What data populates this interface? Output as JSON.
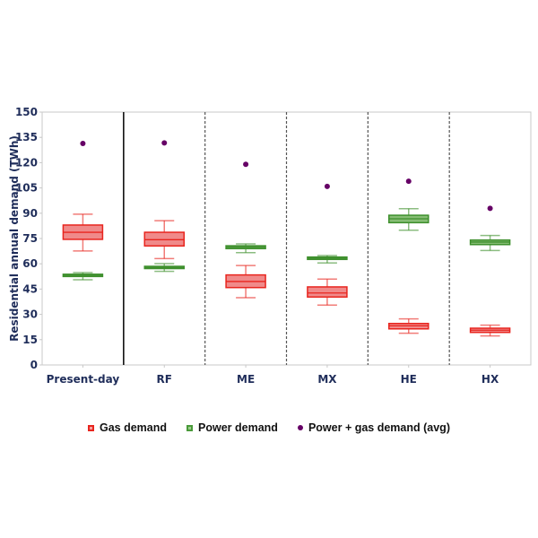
{
  "chart_data": {
    "type": "box",
    "title": "",
    "xlabel": "",
    "ylabel": "Residential annual demand (TWh)",
    "ylim": [
      0,
      150
    ],
    "yticks": [
      0,
      15,
      30,
      45,
      60,
      75,
      90,
      105,
      120,
      135,
      150
    ],
    "categories": [
      "Present-day",
      "RF",
      "ME",
      "MX",
      "HE",
      "HX"
    ],
    "dividers": [
      "solid",
      "dashed",
      "dashed",
      "dashed",
      "dashed"
    ],
    "series": [
      {
        "name": "Gas demand",
        "kind": "box",
        "color": "#e8251e",
        "fill": "#f08a8a",
        "values": [
          {
            "min": 67.6,
            "q1": 74.5,
            "median": 78.7,
            "q3": 83.0,
            "max": 89.4
          },
          {
            "min": 63.1,
            "q1": 70.6,
            "median": 74.3,
            "q3": 78.7,
            "max": 85.6
          },
          {
            "min": 39.9,
            "q1": 45.9,
            "median": 49.5,
            "q3": 53.4,
            "max": 59.0
          },
          {
            "min": 35.5,
            "q1": 40.3,
            "median": 42.7,
            "q3": 46.3,
            "max": 50.9
          },
          {
            "min": 18.8,
            "q1": 21.4,
            "median": 23.2,
            "q3": 24.6,
            "max": 27.3
          },
          {
            "min": 17.2,
            "q1": 19.3,
            "median": 20.6,
            "q3": 21.8,
            "max": 23.6
          }
        ]
      },
      {
        "name": "Power demand",
        "kind": "box",
        "color": "#3d8f2c",
        "fill": "#86bd74",
        "values": [
          {
            "min": 50.5,
            "q1": 52.6,
            "median": 53.2,
            "q3": 53.8,
            "max": 54.8
          },
          {
            "min": 55.5,
            "q1": 57.2,
            "median": 57.8,
            "q3": 58.5,
            "max": 60.1
          },
          {
            "min": 66.6,
            "q1": 69.0,
            "median": 69.9,
            "q3": 70.7,
            "max": 71.8
          },
          {
            "min": 60.5,
            "q1": 62.6,
            "median": 63.3,
            "q3": 64.0,
            "max": 64.9
          },
          {
            "min": 79.9,
            "q1": 84.4,
            "median": 86.7,
            "q3": 88.8,
            "max": 92.7
          },
          {
            "min": 67.9,
            "q1": 71.4,
            "median": 72.9,
            "q3": 74.1,
            "max": 76.8
          }
        ]
      },
      {
        "name": "Power + gas demand (avg)",
        "kind": "point",
        "color": "#660066",
        "values": [
          131.4,
          131.7,
          119.0,
          105.9,
          109.0,
          92.9
        ]
      }
    ],
    "legend_position": "bottom",
    "grid": false
  }
}
